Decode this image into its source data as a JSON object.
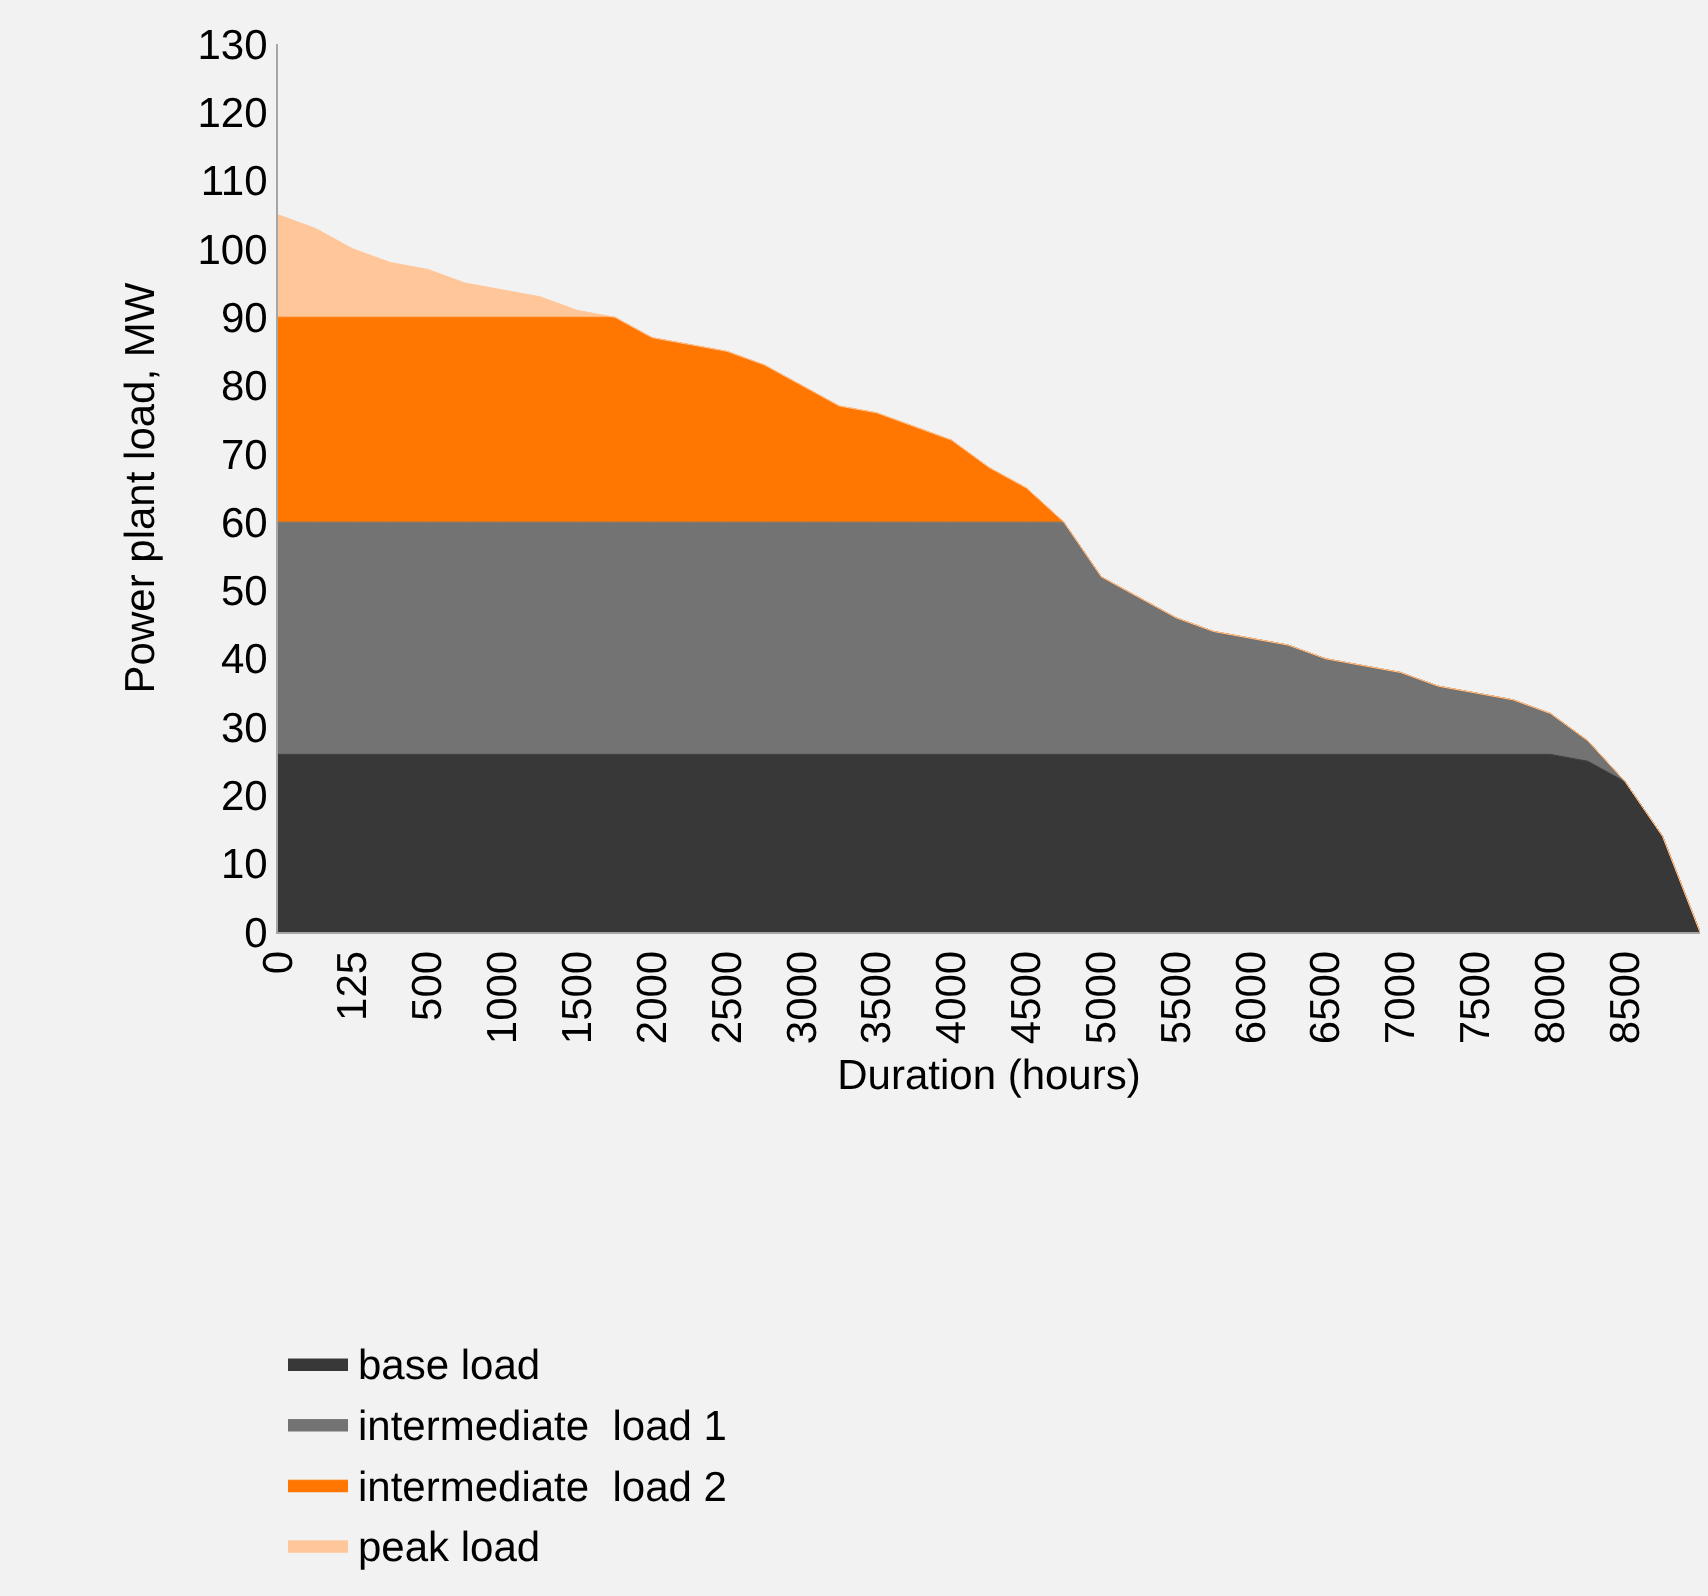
{
  "chart_data": {
    "type": "area",
    "stacked": true,
    "xlabel": "Duration (hours)",
    "ylabel": "Power plant load, MW",
    "categories": [
      "0",
      null,
      "125",
      null,
      "500",
      null,
      "1000",
      null,
      "1500",
      null,
      "2000",
      null,
      "2500",
      null,
      "3000",
      null,
      "3500",
      null,
      "4000",
      null,
      "4500",
      null,
      "5000",
      null,
      "5500",
      null,
      "6000",
      null,
      "6500",
      null,
      "7000",
      null,
      "7500",
      null,
      "8000",
      null,
      "8500",
      null,
      null
    ],
    "series": [
      {
        "name": "base load",
        "color": "#383838",
        "values": [
          26,
          26,
          26,
          26,
          26,
          26,
          26,
          26,
          26,
          26,
          26,
          26,
          26,
          26,
          26,
          26,
          26,
          26,
          26,
          26,
          26,
          26,
          26,
          26,
          26,
          26,
          26,
          26,
          26,
          26,
          26,
          26,
          26,
          26,
          26,
          25,
          22,
          14,
          0
        ]
      },
      {
        "name": "intermediate  load 1",
        "color": "#737373",
        "values": [
          34,
          34,
          34,
          34,
          34,
          34,
          34,
          34,
          34,
          34,
          34,
          34,
          34,
          34,
          34,
          34,
          34,
          34,
          34,
          34,
          34,
          34,
          26,
          23,
          20,
          18,
          17,
          16,
          14,
          13,
          12,
          10,
          9,
          8,
          6,
          3,
          0,
          0,
          0
        ]
      },
      {
        "name": "intermediate  load 2",
        "color": "#ff7700",
        "values": [
          30,
          30,
          30,
          30,
          30,
          30,
          30,
          30,
          30,
          30,
          27,
          26,
          25,
          23,
          20,
          17,
          16,
          14,
          12,
          8,
          5,
          0,
          0,
          0,
          0,
          0,
          0,
          0,
          0,
          0,
          0,
          0,
          0,
          0,
          0,
          0,
          0,
          0,
          0
        ]
      },
      {
        "name": "peak load",
        "color": "#ffc699",
        "values": [
          15,
          13,
          10,
          8,
          7,
          5,
          4,
          3,
          1,
          0,
          0,
          0,
          0,
          0,
          0,
          0,
          0,
          0,
          0,
          0,
          0,
          0,
          0,
          0,
          0,
          0,
          0,
          0,
          0,
          0,
          0,
          0,
          0,
          0,
          0,
          0,
          0,
          0,
          0
        ]
      }
    ],
    "ylim": [
      0,
      130
    ],
    "yticks": [
      0,
      10,
      20,
      30,
      40,
      50,
      60,
      70,
      80,
      90,
      100,
      110,
      120,
      130
    ],
    "grid": false,
    "legend": "bottom"
  }
}
